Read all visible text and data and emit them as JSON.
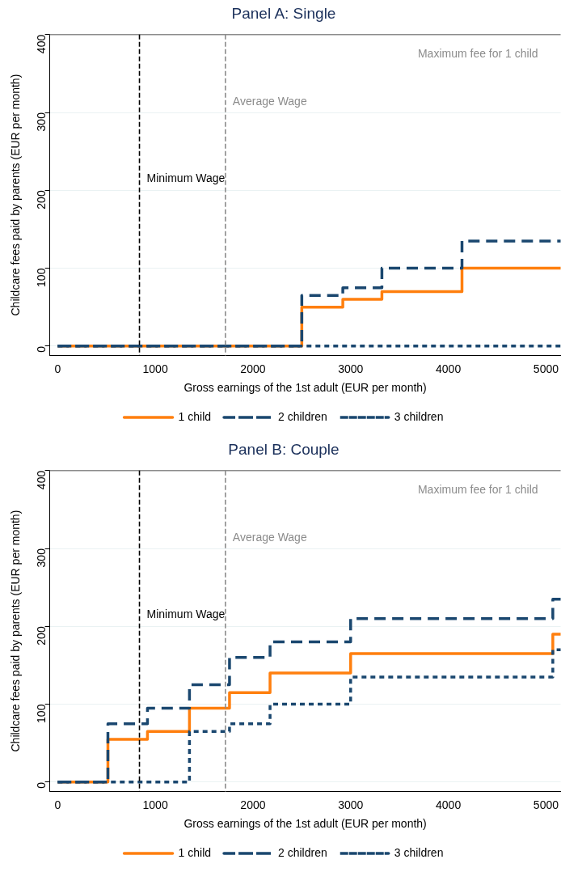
{
  "chart_data": [
    {
      "type": "step",
      "title": "Panel A: Single",
      "xlabel": "Gross earnings of the 1st adult (EUR per month)",
      "ylabel": "Childcare fees paid by parents (EUR per month)",
      "xlim": [
        -80,
        5150
      ],
      "xticks": [
        0,
        1000,
        2000,
        3000,
        4000,
        5000
      ],
      "ylim": [
        -12,
        400
      ],
      "yticks": [
        0,
        100,
        200,
        300,
        400
      ],
      "grid": "y",
      "legend": "bottom",
      "series": [
        {
          "name": "1 child",
          "color": "#ff7f0e",
          "line_style": "solid",
          "x": [
            0,
            2500,
            2920,
            3320,
            4140,
            5150
          ],
          "values": [
            0,
            0,
            50,
            60,
            70,
            100
          ]
        },
        {
          "name": "2 children",
          "color": "#1a476f",
          "line_style": "dashed",
          "x": [
            0,
            2500,
            2920,
            3320,
            4140,
            5150
          ],
          "values": [
            0,
            0,
            65,
            75,
            100,
            135
          ]
        },
        {
          "name": "3 children",
          "color": "#1a476f",
          "line_style": "dotted",
          "x": [
            0,
            5150
          ],
          "values": [
            0,
            0
          ]
        }
      ],
      "ref_lines": [
        {
          "axis": "y",
          "value": 400,
          "label": "Maximum fee for 1 child",
          "color": "#8c8c8c",
          "line_style": "solid"
        },
        {
          "axis": "x",
          "value": 838,
          "label": "Minimum Wage",
          "color": "#000000",
          "line_style": "dashed"
        },
        {
          "axis": "x",
          "value": 1718,
          "label": "Average Wage",
          "color": "#8c8c8c",
          "line_style": "dashed"
        }
      ]
    },
    {
      "type": "step",
      "title": "Panel B: Couple",
      "xlabel": "Gross earnings of the 1st adult (EUR per month)",
      "ylabel": "Childcare fees paid by parents (EUR per month)",
      "xlim": [
        -80,
        5150
      ],
      "xticks": [
        0,
        1000,
        2000,
        3000,
        4000,
        5000
      ],
      "ylim": [
        -12,
        400
      ],
      "yticks": [
        0,
        100,
        200,
        300,
        400
      ],
      "grid": "y",
      "legend": "bottom",
      "series": [
        {
          "name": "1 child",
          "color": "#ff7f0e",
          "line_style": "solid",
          "x": [
            0,
            515,
            920,
            1350,
            1760,
            2175,
            3000,
            5070,
            5150
          ],
          "values": [
            0,
            0,
            55,
            65,
            95,
            115,
            140,
            165,
            190
          ]
        },
        {
          "name": "2 children",
          "color": "#1a476f",
          "line_style": "dashed",
          "x": [
            0,
            515,
            920,
            1350,
            1760,
            2175,
            3000,
            5070,
            5150
          ],
          "values": [
            0,
            0,
            75,
            95,
            125,
            160,
            180,
            210,
            235
          ]
        },
        {
          "name": "3 children",
          "color": "#1a476f",
          "line_style": "dotted",
          "x": [
            0,
            1350,
            1760,
            2175,
            3000,
            5070,
            5150
          ],
          "values": [
            0,
            0,
            65,
            75,
            100,
            135,
            170
          ]
        }
      ],
      "ref_lines": [
        {
          "axis": "y",
          "value": 400,
          "label": "Maximum fee for 1 child",
          "color": "#8c8c8c",
          "line_style": "solid"
        },
        {
          "axis": "x",
          "value": 838,
          "label": "Minimum Wage",
          "color": "#000000",
          "line_style": "dashed"
        },
        {
          "axis": "x",
          "value": 1718,
          "label": "Average Wage",
          "color": "#8c8c8c",
          "line_style": "dashed"
        }
      ]
    }
  ]
}
